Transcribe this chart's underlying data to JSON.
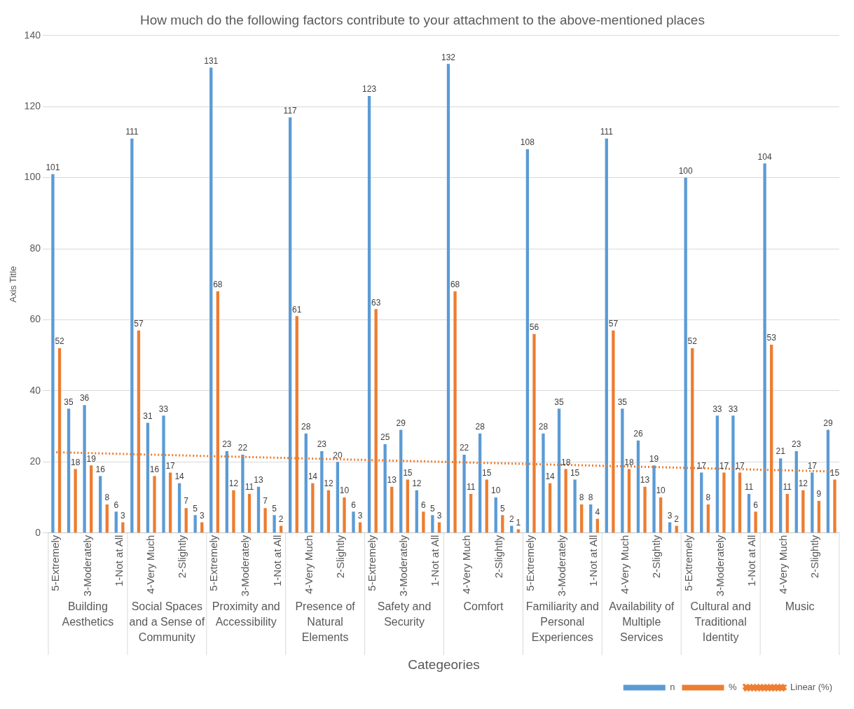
{
  "chart_data": {
    "type": "bar",
    "title": "How much do the following factors contribute to your attachment to the above-mentioned places",
    "xlabel": "Categeories",
    "ylabel": "Axis Title",
    "categories": [
      "5-Extremely",
      null,
      "3-Moderately",
      null,
      "1-Not at All",
      null,
      "4-Very Much",
      null,
      "2-Slightly",
      null,
      "5-Extremely",
      null,
      "3-Moderately",
      null,
      "1-Not at All",
      null,
      "4-Very Much",
      null,
      "2-Slightly",
      null,
      "5-Extremely",
      null,
      "3-Moderately",
      null,
      "1-Not at All",
      null,
      "4-Very Much",
      null,
      "2-Slightly",
      null,
      "5-Extremely",
      null,
      "3-Moderately",
      null,
      "1-Not at All",
      null,
      "4-Very Much",
      null,
      "2-Slightly",
      null,
      "5-Extremely",
      null,
      "3-Moderately",
      null,
      "1-Not at All",
      null,
      "4-Very Much",
      null,
      "2-Slightly",
      null
    ],
    "annotations": [
      "Building Aesthetics",
      "Social Spaces and a Sense of Community",
      "Proximity and Accessibility",
      "Presence of Natural Elements",
      "Safety and Security",
      "Comfort",
      "Familiarity and Personal Experiences",
      "Availability of Multiple Services",
      "Cultural and Traditional Identity",
      "Music"
    ],
    "series": [
      {
        "name": "n",
        "color": "#5b9bd5",
        "data_labels": true,
        "values": [
          101,
          35,
          36,
          16,
          6,
          111,
          31,
          33,
          14,
          5,
          131,
          23,
          22,
          13,
          5,
          117,
          28,
          23,
          20,
          6,
          123,
          25,
          29,
          12,
          5,
          132,
          22,
          28,
          10,
          2,
          108,
          28,
          35,
          15,
          8,
          111,
          35,
          26,
          19,
          3,
          100,
          17,
          33,
          33,
          11,
          104,
          21,
          23,
          17,
          29
        ]
      },
      {
        "name": "%",
        "color": "#ed7d31",
        "data_labels": true,
        "values": [
          52,
          18,
          19,
          8,
          3,
          57,
          16,
          17,
          7,
          3,
          68,
          12,
          11,
          7,
          2,
          61,
          14,
          12,
          10,
          3,
          63,
          13,
          15,
          6,
          3,
          68,
          11,
          15,
          5,
          1,
          56,
          14,
          18,
          8,
          4,
          57,
          18,
          13,
          10,
          2,
          52,
          8,
          17,
          17,
          6,
          53,
          11,
          12,
          9,
          15
        ]
      },
      {
        "name": "Linear (%)",
        "type": "line",
        "color": "#ed7d31",
        "line_style": "dotted",
        "marker": "none",
        "values": [
          22.7,
          null,
          null,
          null,
          null,
          null,
          null,
          null,
          null,
          null,
          null,
          null,
          null,
          null,
          null,
          null,
          null,
          null,
          null,
          null,
          null,
          null,
          null,
          null,
          null,
          null,
          null,
          null,
          null,
          null,
          null,
          null,
          null,
          null,
          null,
          null,
          null,
          null,
          null,
          null,
          null,
          null,
          null,
          null,
          null,
          null,
          null,
          null,
          null,
          17.3
        ]
      }
    ],
    "ylim": [
      0,
      140
    ],
    "yticks": [
      0,
      20,
      40,
      60,
      80,
      100,
      120,
      140
    ],
    "grid": "y",
    "legend": "bottom"
  }
}
